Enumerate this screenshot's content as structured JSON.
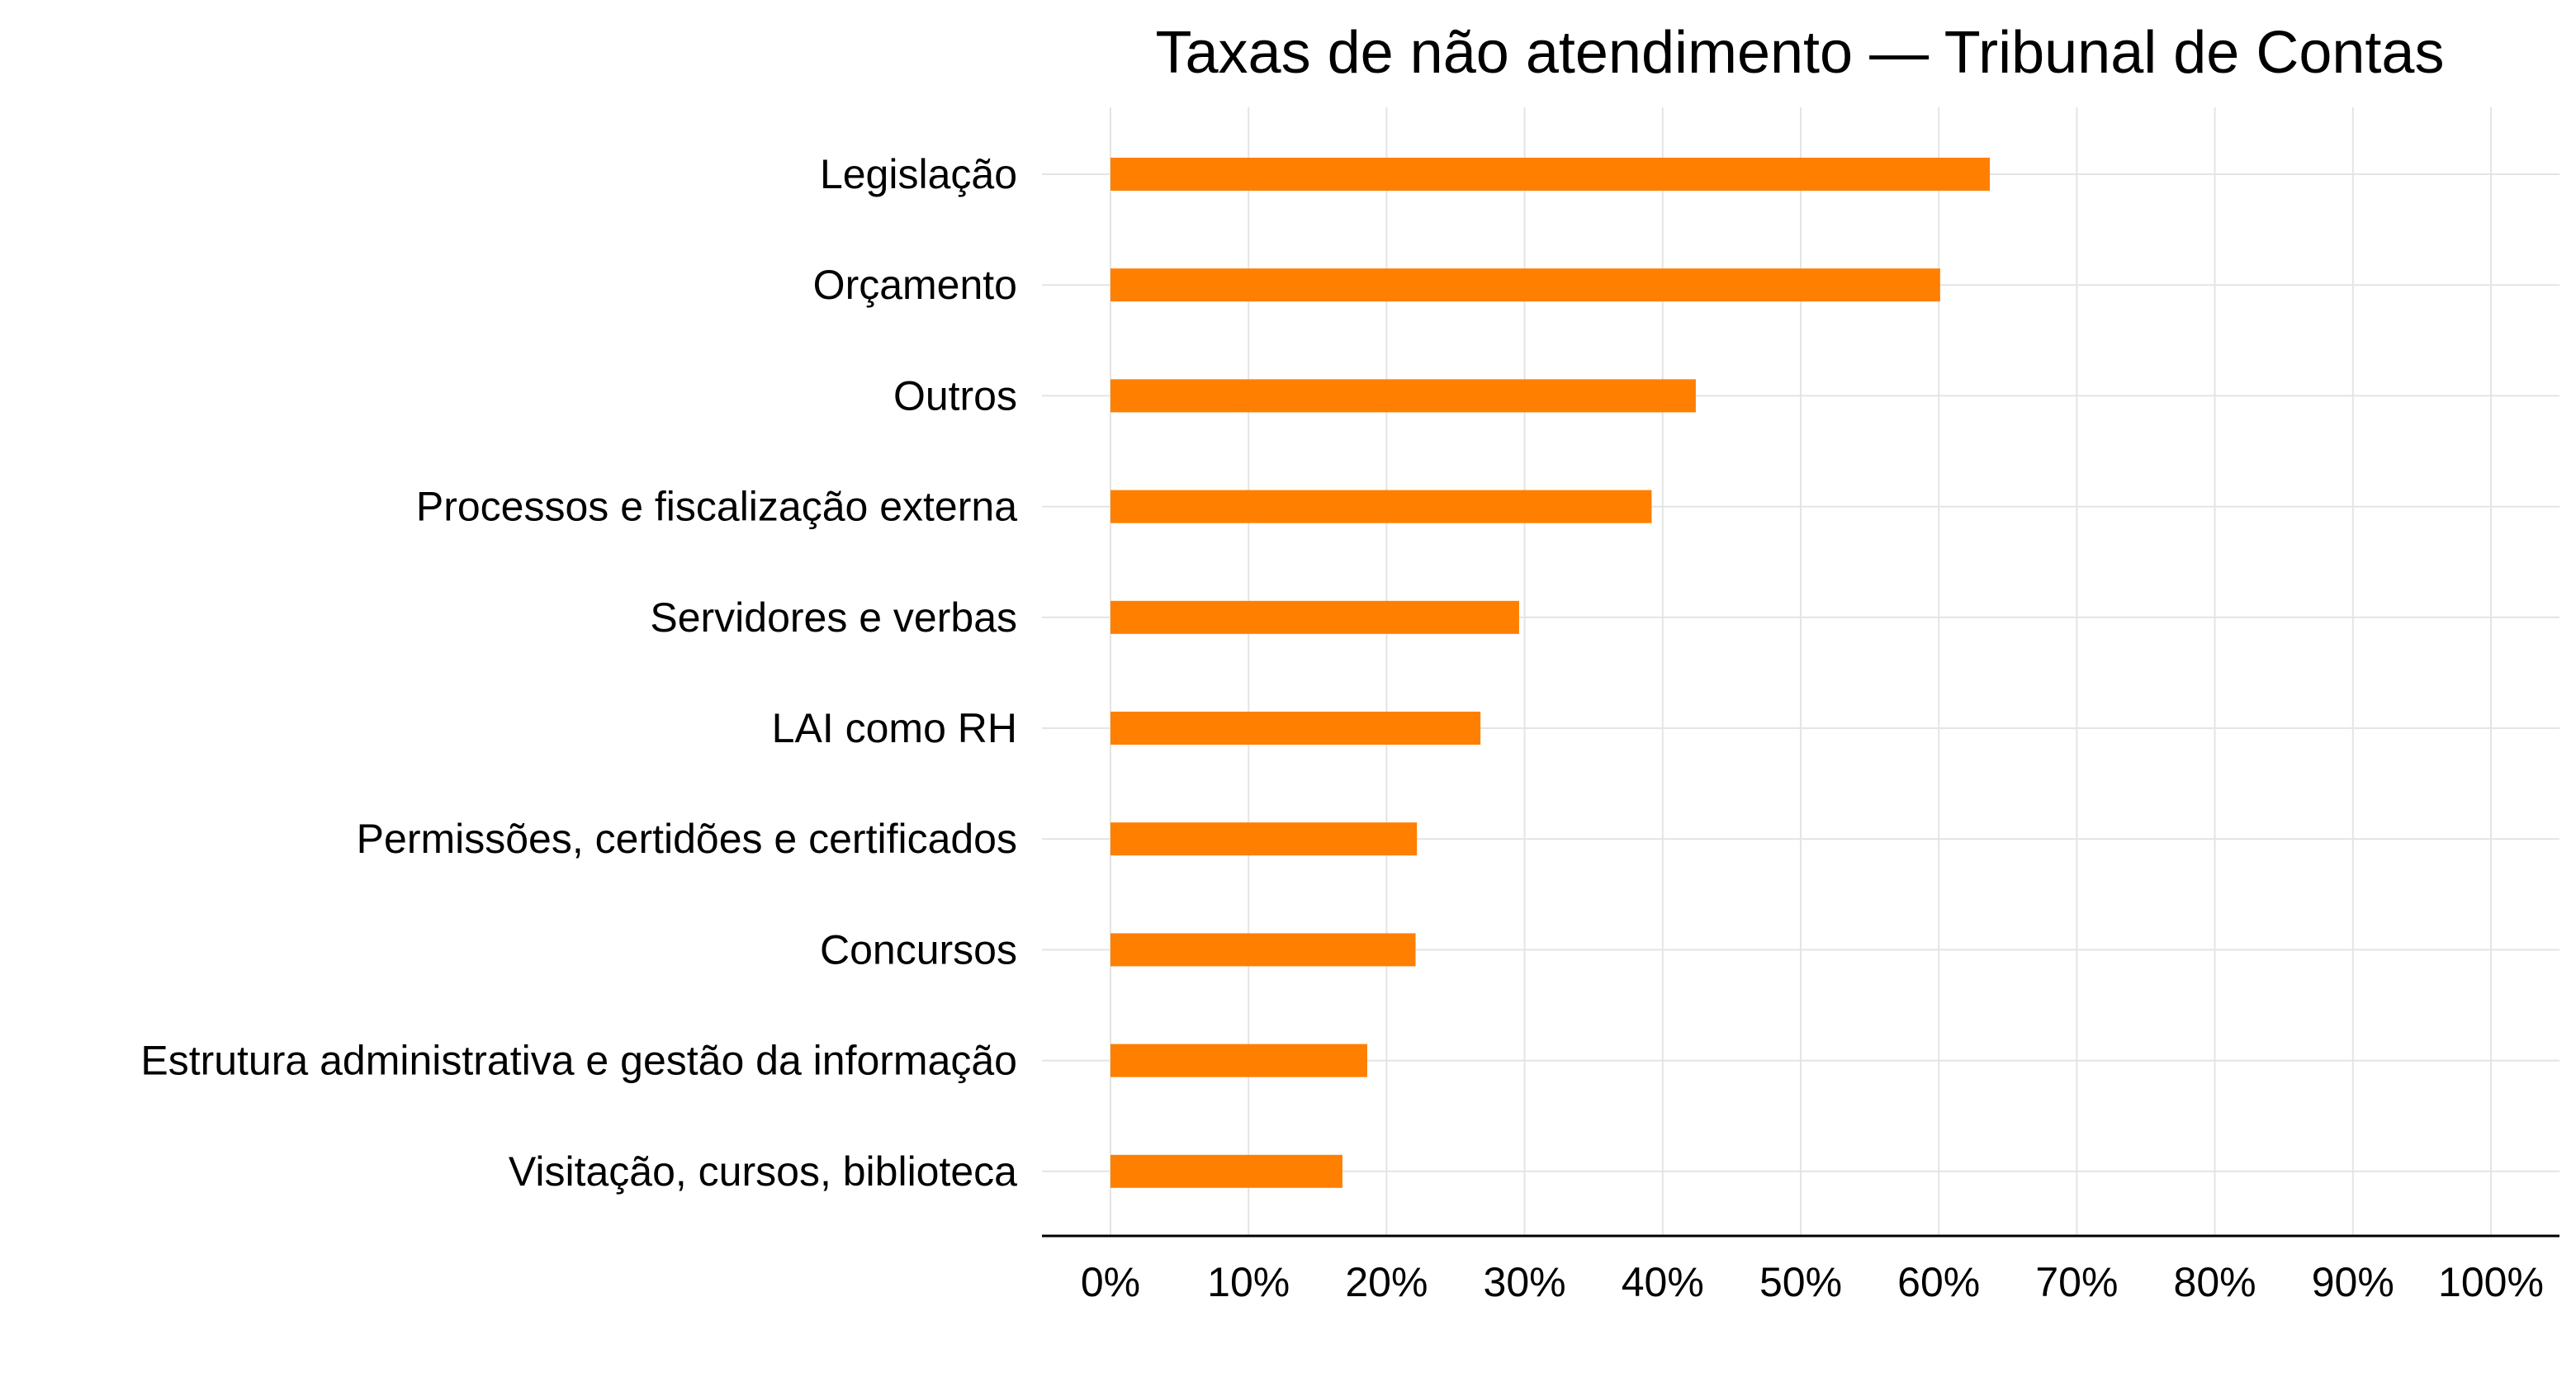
{
  "chart_data": {
    "type": "bar",
    "orientation": "horizontal",
    "title": "Taxas de não atendimento — Tribunal de Contas",
    "xlabel": "",
    "ylabel": "",
    "xlim": [
      0,
      100
    ],
    "x_ticks": [
      "0%",
      "10%",
      "20%",
      "30%",
      "40%",
      "50%",
      "60%",
      "70%",
      "80%",
      "90%",
      "100%"
    ],
    "grid": true,
    "legend": "none",
    "bar_color": "#ff7f00",
    "categories": [
      "Legislação",
      "Orçamento",
      "Outros",
      "Processos e fiscalização externa",
      "Servidores e verbas",
      "LAI como RH",
      "Permissões, certidões e certificados",
      "Concursos",
      "Estrutura administrativa e gestão da informação",
      "Visitação, cursos, biblioteca"
    ],
    "values": [
      63.7,
      60.1,
      42.4,
      39.2,
      29.6,
      26.8,
      22.2,
      22.1,
      18.6,
      16.8
    ]
  }
}
